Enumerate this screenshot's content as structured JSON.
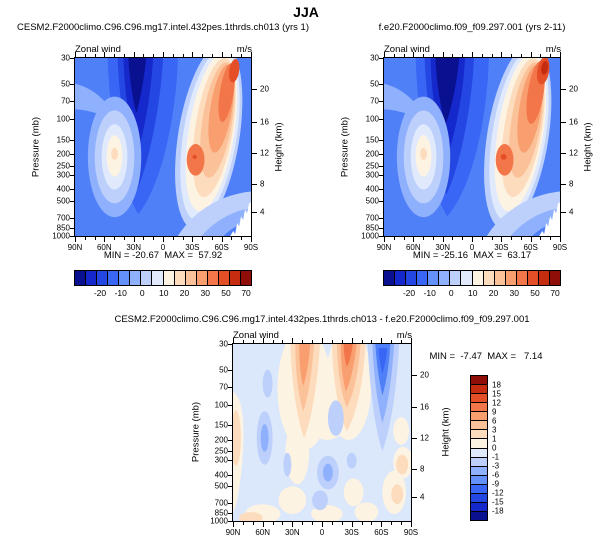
{
  "season_title": "JJA",
  "panels": [
    {
      "id": "case1",
      "title": "CESM2.F2000climo.C96.C96.mg17.intel.432pes.1thrds.ch013 (yrs 1)",
      "field_label": "Zonal wind",
      "units_label": "m/s",
      "stats": "MIN = -20.67  MAX =  57.92",
      "min": -20.67,
      "max": 57.92
    },
    {
      "id": "case2",
      "title": "f.e20.F2000climo.f09_f09.297.001 (yrs 2-11)",
      "field_label": "Zonal wind",
      "units_label": "m/s",
      "stats": "MIN = -25.16  MAX =  63.17",
      "min": -25.16,
      "max": 63.17
    },
    {
      "id": "difference",
      "title": "CESM2.F2000climo.C96.C96.mg17.intel.432pes.1thrds.ch013 - f.e20.F2000climo.f09_f09.297.001",
      "field_label": "Zonal wind",
      "units_label": "m/s",
      "stats": "MIN =  -7.47  MAX =   7.14",
      "min": -7.47,
      "max": 7.14
    }
  ],
  "axes": {
    "pressure_label": "Pressure (mb)",
    "pressure_ticks": [
      30,
      50,
      70,
      100,
      150,
      200,
      250,
      300,
      400,
      500,
      700,
      850,
      1000
    ],
    "height_label": "Height (km)",
    "height_ticks": [
      20,
      16,
      12,
      8,
      4
    ],
    "height_tick_fracs": [
      0.173,
      0.357,
      0.531,
      0.709,
      0.866
    ],
    "lat_ticks": [
      "90N",
      "60N",
      "30N",
      "0",
      "30S",
      "60S",
      "90S"
    ]
  },
  "colorbar_top": {
    "labels": [
      "-20",
      "-10",
      "0",
      "10",
      "20",
      "30",
      "50",
      "70"
    ],
    "label_pos_pct": [
      14.2,
      26.0,
      38.2,
      50.4,
      62.2,
      74.0,
      85.8,
      97.2
    ],
    "colors": [
      "#0a1191",
      "#1528cb",
      "#2447e3",
      "#3a66f5",
      "#6490fa",
      "#8fb0fc",
      "#bcd0fb",
      "#e0eafc",
      "#fdf3e3",
      "#fcdcbc",
      "#fbc29a",
      "#f89e6f",
      "#f2764a",
      "#e54f28",
      "#c52c10",
      "#8f0e07"
    ]
  },
  "colorbar_diff": {
    "labels": [
      "18",
      "15",
      "12",
      "9",
      "6",
      "3",
      "1",
      "0",
      "-1",
      "-3",
      "-6",
      "-9",
      "-12",
      "-15",
      "-18"
    ],
    "colors": [
      "#8f0e07",
      "#c52c10",
      "#e54f28",
      "#f2764a",
      "#f89e6f",
      "#fbc29a",
      "#fcdcbc",
      "#fdf3e3",
      "#e0eafc",
      "#bcd0fb",
      "#8fb0fc",
      "#6490fa",
      "#3a66f5",
      "#2447e3",
      "#1528cb",
      "#0a1191"
    ]
  },
  "chart_data": [
    {
      "type": "heatmap",
      "subtype": "filled-contour latitude-pressure section",
      "title": "CESM2.F2000climo.C96.C96.mg17.intel.432pes.1thrds.ch013 (yrs 1)",
      "season": "JJA",
      "variable": "Zonal wind",
      "units": "m/s",
      "x_ticks": [
        "90N",
        "60N",
        "30N",
        "0",
        "30S",
        "60S",
        "90S"
      ],
      "y_pressure_ticks_mb": [
        30,
        50,
        70,
        100,
        150,
        200,
        250,
        300,
        400,
        500,
        700,
        850,
        1000
      ],
      "y2_height_ticks_km": [
        20,
        16,
        12,
        8,
        4
      ],
      "y_scale": "log pressure, 30 mb top to 1000 mb bottom",
      "contour_levels": [
        -20,
        -15,
        -10,
        -5,
        0,
        5,
        10,
        15,
        20,
        25,
        30,
        40,
        50,
        60,
        70
      ],
      "min": -20.67,
      "max": 57.92,
      "notable_features": [
        "easterly core < -20 m/s near 10-25N between 30 and 150 mb",
        "NH subtropical jet ~20-25 m/s near 40-45N at 150-250 mb",
        "SH winter jet > 50 m/s tilting from 60S at 30-70 mb toward 30-40S at 200 mb",
        "white (masked terrain) wedge at bottom-right near 80-90S below ~700 mb"
      ],
      "legend_position": "horizontal labelbar below panel"
    },
    {
      "type": "heatmap",
      "subtype": "filled-contour latitude-pressure section",
      "title": "f.e20.F2000climo.f09_f09.297.001 (yrs 2-11)",
      "season": "JJA",
      "variable": "Zonal wind",
      "units": "m/s",
      "x_ticks": [
        "90N",
        "60N",
        "30N",
        "0",
        "30S",
        "60S",
        "90S"
      ],
      "y_pressure_ticks_mb": [
        30,
        50,
        70,
        100,
        150,
        200,
        250,
        300,
        400,
        500,
        700,
        850,
        1000
      ],
      "y2_height_ticks_km": [
        20,
        16,
        12,
        8,
        4
      ],
      "y_scale": "log pressure, 30 mb top to 1000 mb bottom",
      "contour_levels": [
        -20,
        -15,
        -10,
        -5,
        0,
        5,
        10,
        15,
        20,
        25,
        30,
        40,
        50,
        60,
        70
      ],
      "min": -25.16,
      "max": 63.17,
      "notable_features": [
        "deeper easterly core < -25 m/s near 10-25N stratosphere",
        "SH winter jet maximum > 60 m/s near 60S at 30-50 mb",
        "pattern otherwise very similar to left panel"
      ],
      "legend_position": "horizontal labelbar below panel"
    },
    {
      "type": "heatmap",
      "subtype": "filled-contour latitude-pressure difference section",
      "title": "CESM2.F2000climo.C96.C96.mg17.intel.432pes.1thrds.ch013 - f.e20.F2000climo.f09_f09.297.001",
      "season": "JJA",
      "variable": "Zonal wind difference",
      "units": "m/s",
      "x_ticks": [
        "90N",
        "60N",
        "30N",
        "0",
        "30S",
        "60S",
        "90S"
      ],
      "y_pressure_ticks_mb": [
        30,
        50,
        70,
        100,
        150,
        200,
        250,
        300,
        400,
        500,
        700,
        850,
        1000
      ],
      "y2_height_ticks_km": [
        20,
        16,
        12,
        8,
        4
      ],
      "y_scale": "log pressure, 30 mb top to 1000 mb bottom",
      "contour_levels": [
        -18,
        -15,
        -12,
        -9,
        -6,
        -3,
        -1,
        0,
        1,
        3,
        6,
        9,
        12,
        15,
        18
      ],
      "min": -7.47,
      "max": 7.14,
      "notable_features": [
        "positive differences up to ~7 m/s near 10-20N and 15-35S in the 30-100 mb layer",
        "negative differences to ~-7 m/s near 60S between 30 and 150 mb",
        "weak alternating +/- 1-3 m/s bands through the troposphere"
      ],
      "legend_position": "vertical labelbar right of panel"
    }
  ]
}
